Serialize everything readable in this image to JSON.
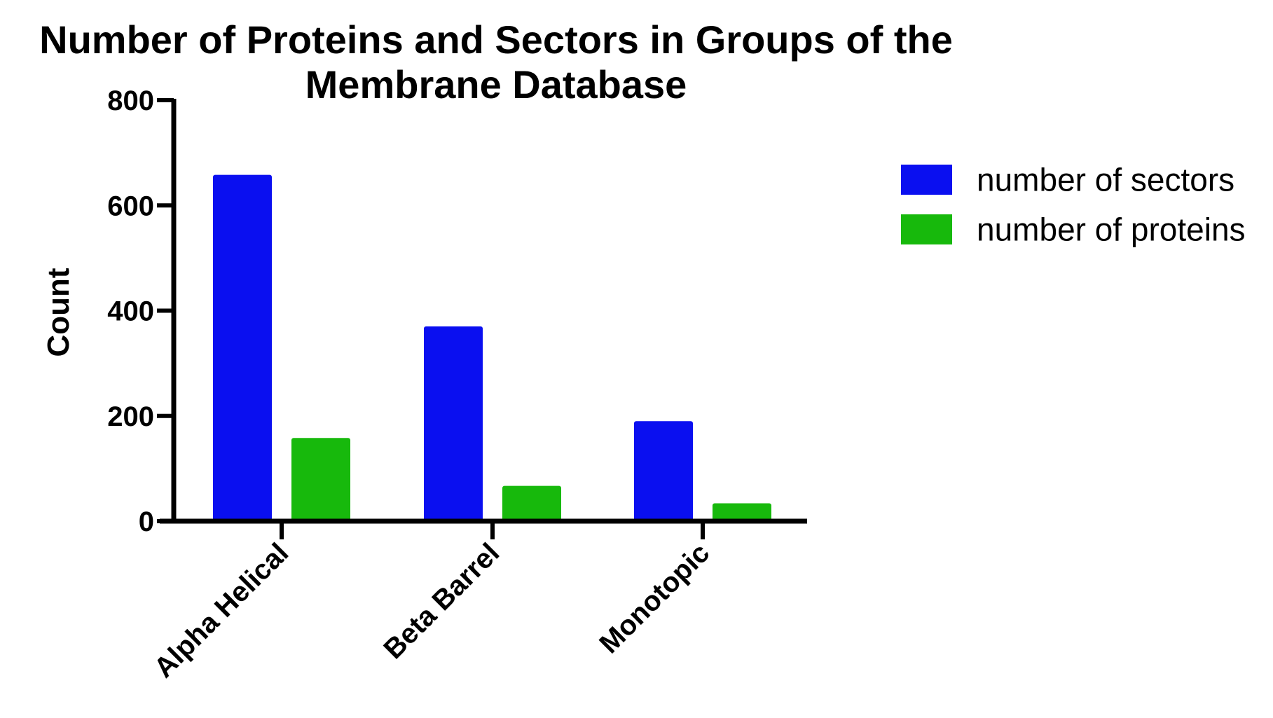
{
  "chart_data": {
    "type": "bar",
    "title_lines": [
      "Number of Proteins and Sectors in Groups of the",
      "Membrane Database"
    ],
    "xlabel": "",
    "ylabel": "Count",
    "ylim": [
      0,
      800
    ],
    "yticks": [
      0,
      200,
      400,
      600,
      800
    ],
    "categories": [
      "Alpha Helical",
      "Beta Barrel",
      "Monotopic"
    ],
    "series": [
      {
        "name": "number of sectors",
        "color": "#0a0ff0",
        "values": [
          658,
          370,
          190
        ]
      },
      {
        "name": "number of proteins",
        "color": "#17b90c",
        "values": [
          158,
          67,
          34
        ]
      }
    ],
    "legend_position": "right",
    "grid": false
  }
}
